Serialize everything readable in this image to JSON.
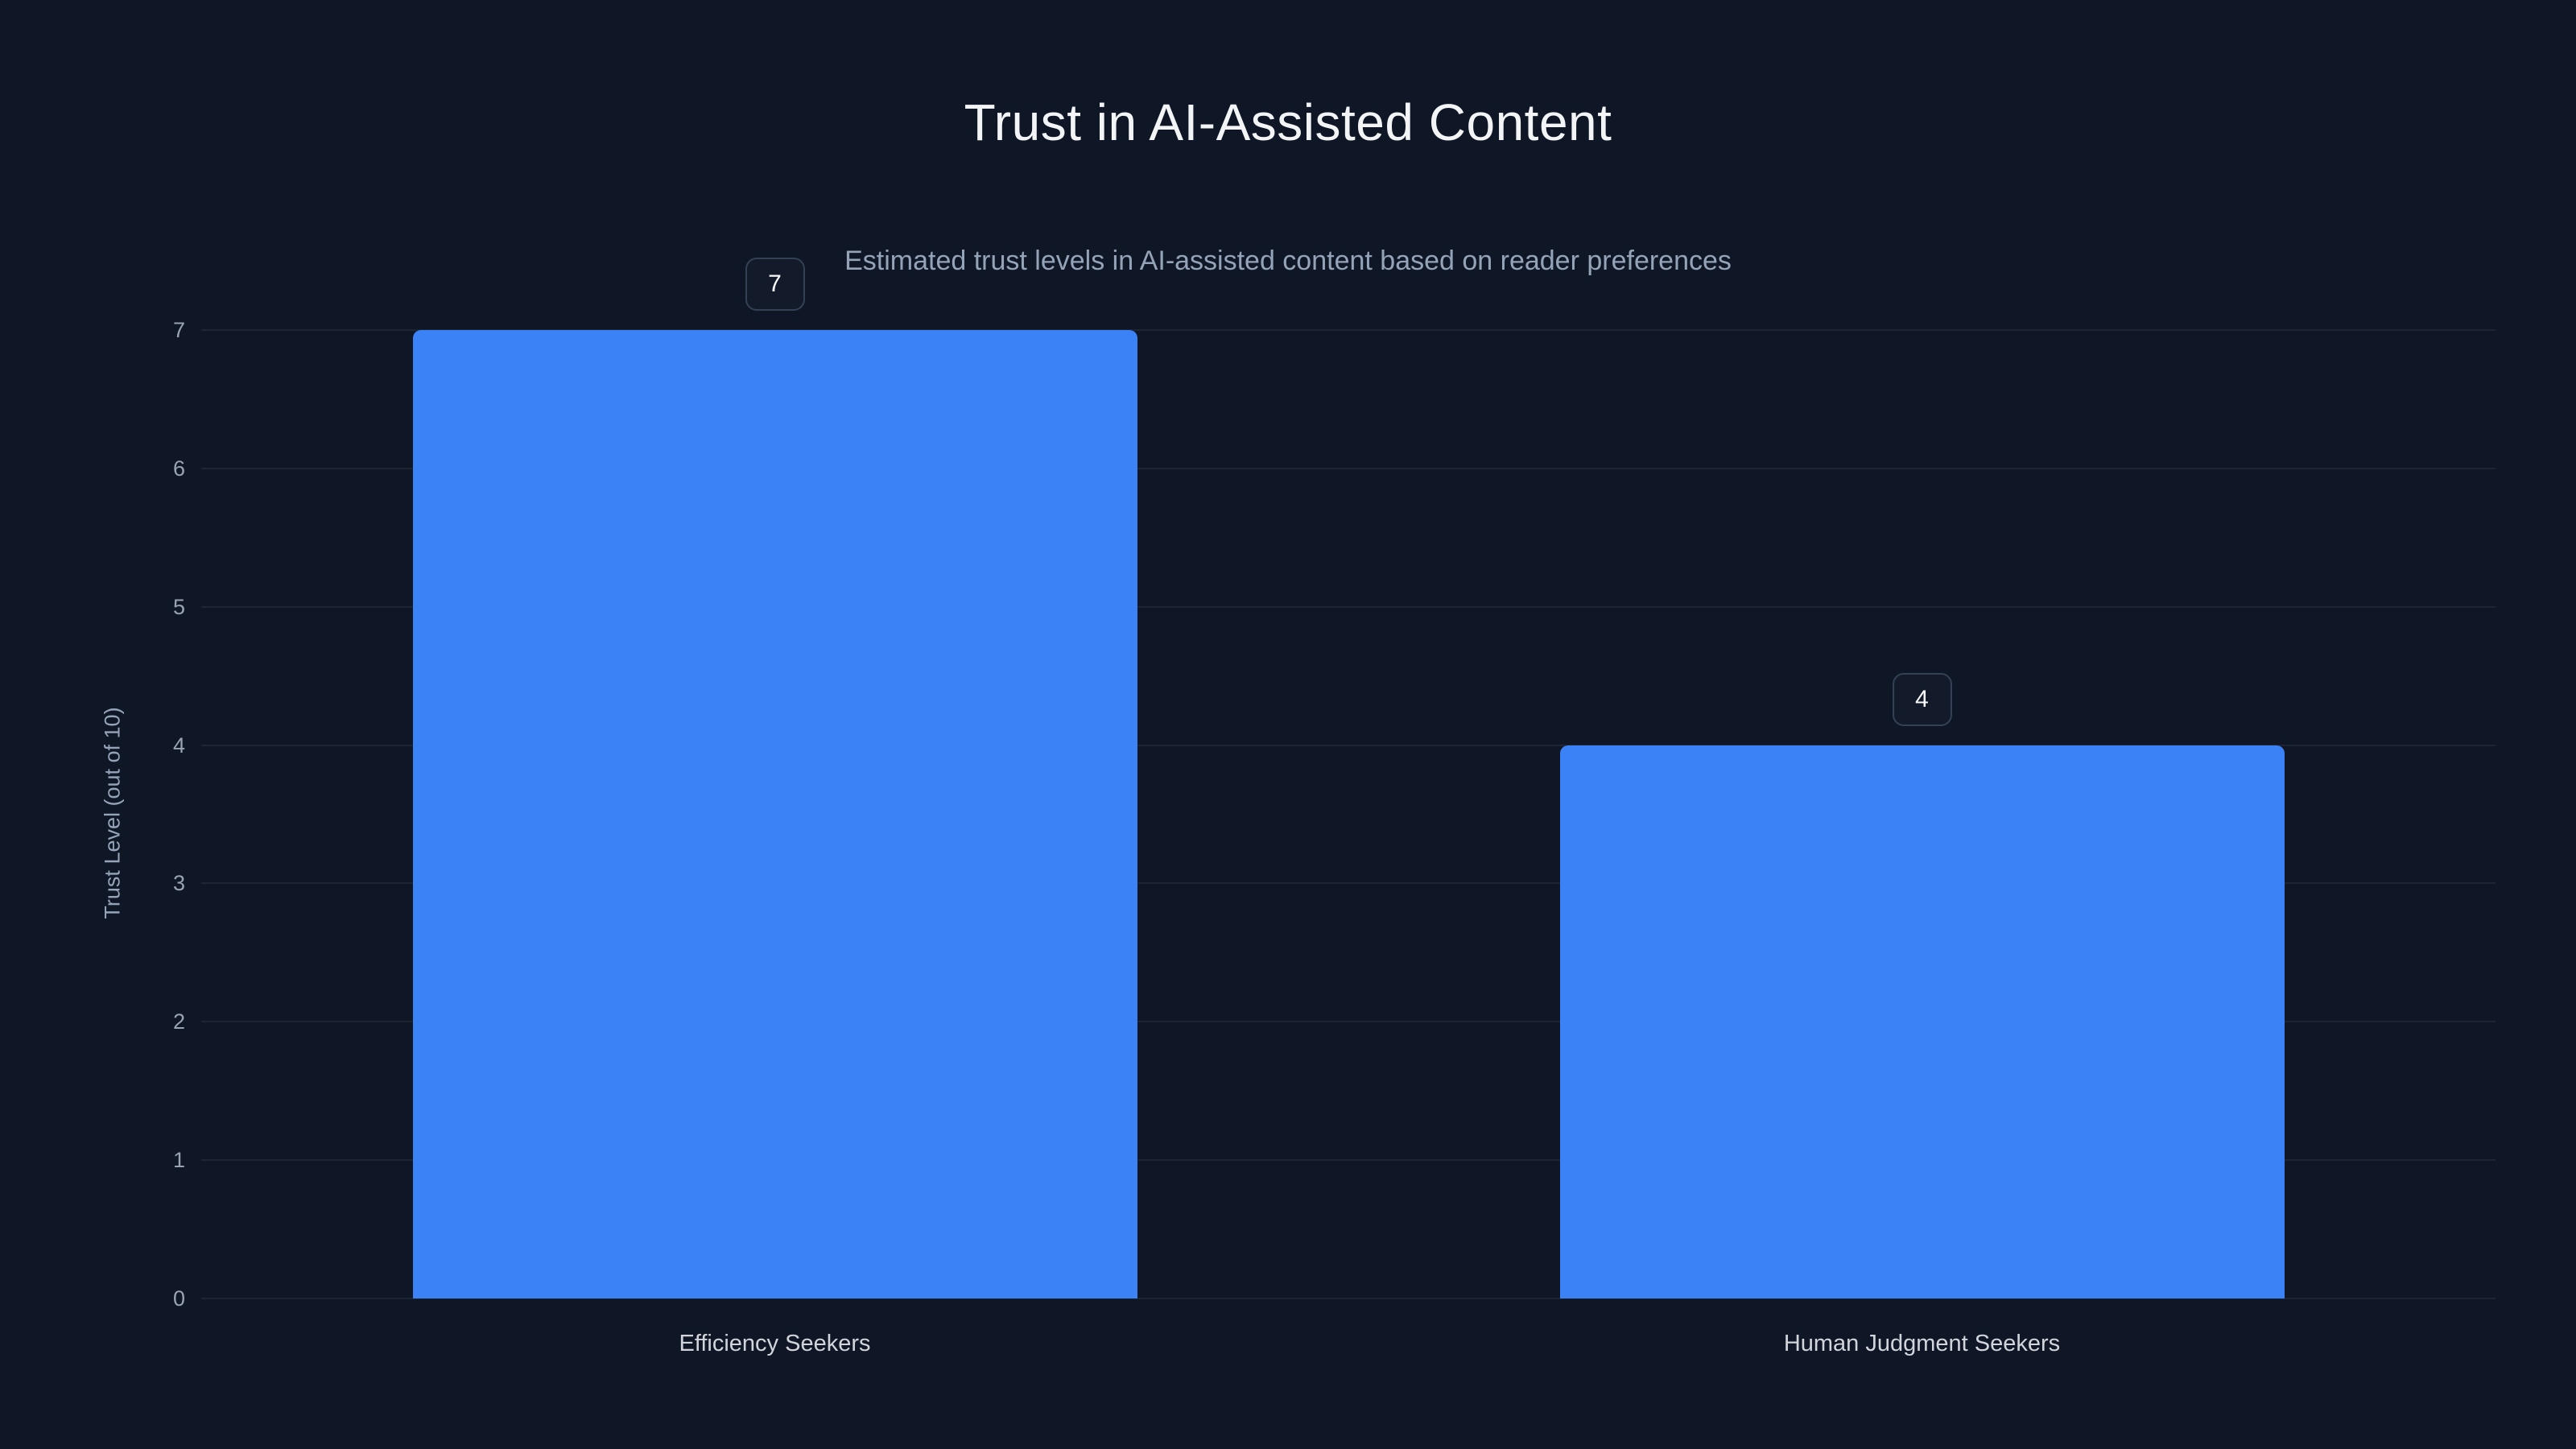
{
  "page": {
    "background_color": "#0f1726"
  },
  "chart_data": {
    "type": "bar",
    "title": "Trust in AI-Assisted Content",
    "subtitle": "Estimated trust levels in AI-assisted content based on reader preferences",
    "categories": [
      "Efficiency Seekers",
      "Human Judgment Seekers"
    ],
    "values": [
      7,
      4
    ],
    "value_labels": [
      "7",
      "4"
    ],
    "xlabel": "",
    "ylabel": "Trust Level (out of 10)",
    "ylim": [
      0,
      7
    ],
    "yticks": [
      0,
      1,
      2,
      3,
      4,
      5,
      6,
      7
    ],
    "grid": true,
    "legend": "none",
    "bar_color": "#3b82f6",
    "background_color": "#0f1726"
  }
}
